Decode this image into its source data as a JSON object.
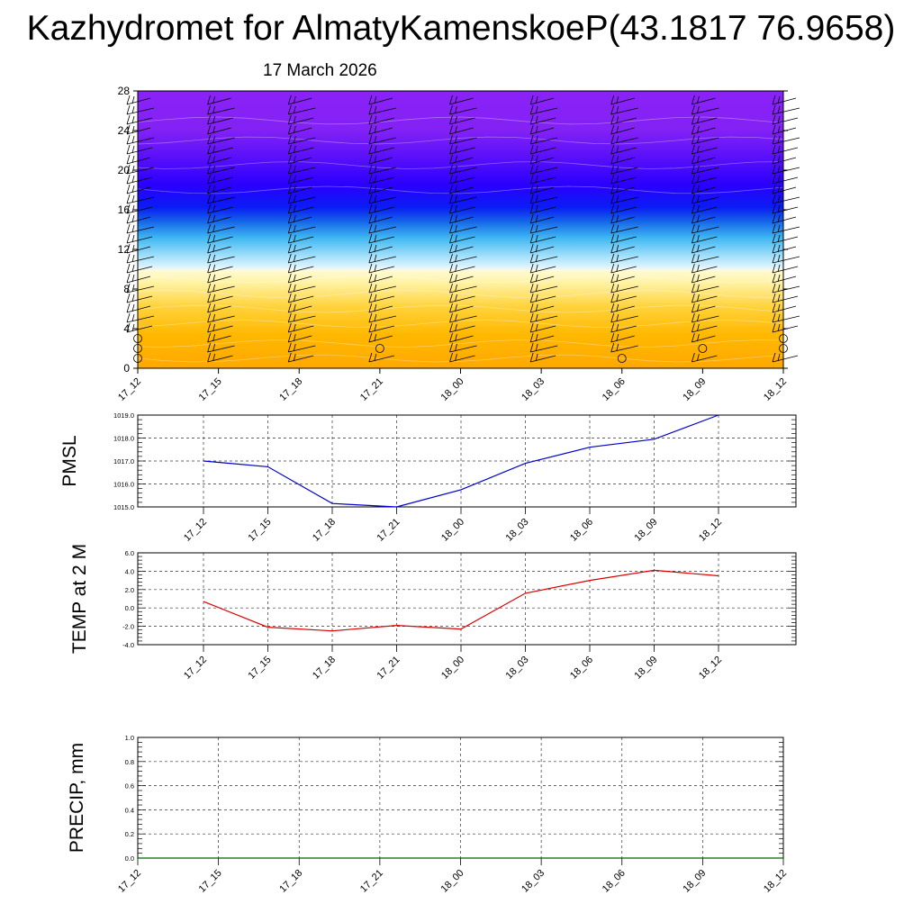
{
  "title": "Kazhydromet for AlmatyKamenskoeP(43.1817 76.9658)",
  "subtitle": "17 March 2026",
  "chart_data": [
    {
      "type": "heatmap",
      "description_source": "cross-section of vertical levels 0-28 with wind barbs",
      "x": [
        "17_12",
        "17_15",
        "17_18",
        "17_21",
        "18_00",
        "18_03",
        "18_06",
        "18_09",
        "18_12"
      ],
      "ylim": [
        0,
        28
      ],
      "yticks": [
        0,
        4,
        8,
        12,
        16,
        20,
        24,
        28
      ],
      "color_bands": [
        {
          "from": 0,
          "to": 10,
          "color": "#ffb300"
        },
        {
          "from": 10,
          "to": 16,
          "color": "#4fc3f7"
        },
        {
          "from": 16,
          "to": 22,
          "color": "#2200ff"
        },
        {
          "from": 22,
          "to": 28,
          "color": "#8f22f5"
        }
      ],
      "calm_markers": [
        {
          "x": "17_12",
          "levels": [
            1,
            2,
            3
          ]
        },
        {
          "x": "17_21",
          "levels": [
            2
          ]
        },
        {
          "x": "18_06",
          "levels": [
            1
          ]
        },
        {
          "x": "18_09",
          "levels": [
            2
          ]
        },
        {
          "x": "18_12",
          "levels": [
            2,
            3
          ]
        }
      ]
    },
    {
      "type": "line",
      "ylabel": "PMSL",
      "x": [
        "17_12",
        "17_15",
        "17_18",
        "17_21",
        "18_00",
        "18_03",
        "18_06",
        "18_09",
        "18_12"
      ],
      "ylim": [
        1015.0,
        1019.0
      ],
      "yticks": [
        "1015.0",
        "1016.0",
        "1017.0",
        "1018.0",
        "1019.0"
      ],
      "series": [
        {
          "values": [
            1017.0,
            1016.75,
            1015.15,
            1015.0,
            1015.75,
            1016.9,
            1017.6,
            1017.95,
            1019.0
          ],
          "color": "#0000cc"
        }
      ],
      "grid": true
    },
    {
      "type": "line",
      "ylabel": "TEMP at 2 M",
      "x": [
        "17_12",
        "17_15",
        "17_18",
        "17_21",
        "18_00",
        "18_03",
        "18_06",
        "18_09",
        "18_12"
      ],
      "ylim": [
        -4.0,
        6.0
      ],
      "yticks": [
        "-4.0",
        "-2.0",
        "0.0",
        "2.0",
        "4.0",
        "6.0"
      ],
      "series": [
        {
          "values": [
            0.7,
            -2.1,
            -2.5,
            -1.9,
            -2.3,
            1.6,
            3.0,
            4.1,
            3.5
          ],
          "color": "#dd0000"
        }
      ],
      "grid": true
    },
    {
      "type": "line",
      "ylabel": "PRECIP, mm",
      "x": [
        "17_12",
        "17_15",
        "17_18",
        "17_21",
        "18_00",
        "18_03",
        "18_06",
        "18_09",
        "18_12"
      ],
      "ylim": [
        0.0,
        1.0
      ],
      "yticks": [
        "0.0",
        "0.2",
        "0.4",
        "0.6",
        "0.8",
        "1.0"
      ],
      "series": [
        {
          "values": [
            0,
            0,
            0,
            0,
            0,
            0,
            0,
            0,
            0
          ],
          "color": "#006400"
        }
      ],
      "grid": true
    }
  ]
}
